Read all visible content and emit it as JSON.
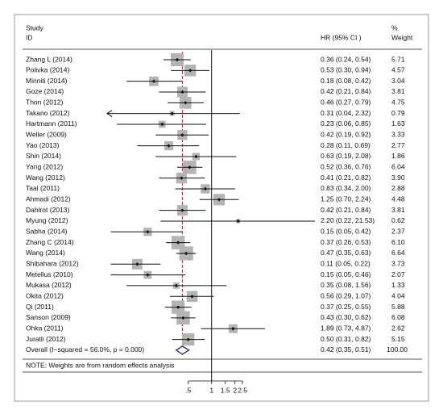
{
  "chart_data": {
    "type": "forest",
    "header": {
      "study": "Study",
      "id": "ID",
      "effect": "HR (95% CI )",
      "pct": "%",
      "weight": "Weight"
    },
    "categories": [
      "Zhang L (2014)",
      "Polivka (2014)",
      "Minniti (2014)",
      "Goze (2014)",
      "Thon (2012)",
      "Takano (2012)",
      "Hartmann  (2011)",
      "Weller (2009)",
      "Yao (2013)",
      "Shin (2014)",
      "Yang (2012)",
      "Wang (2012)",
      "Taal (2011)",
      "Ahmadi (2012)",
      "Dahlrot (2013)",
      "Myung (2012)",
      "Sabha (2014)",
      "Zhang C (2014)",
      "Wang (2014)",
      "Shibahara (2012)",
      "Metellus (2010)",
      "Mukasa (2012)",
      "Okita (2012)",
      "Qi (2011)",
      "Sanson (2009)",
      "Ohka (2011)",
      "Juratli (2012)"
    ],
    "values": [
      0.36,
      0.53,
      0.18,
      0.42,
      0.46,
      0.31,
      0.23,
      0.42,
      0.28,
      0.63,
      0.52,
      0.41,
      0.83,
      1.25,
      0.42,
      2.2,
      0.15,
      0.37,
      0.47,
      0.11,
      0.15,
      0.35,
      0.56,
      0.37,
      0.43,
      1.89,
      0.5
    ],
    "lower": [
      0.24,
      0.3,
      0.08,
      0.21,
      0.27,
      0.04,
      0.06,
      0.19,
      0.11,
      0.19,
      0.36,
      0.21,
      0.34,
      0.7,
      0.21,
      0.22,
      0.05,
      0.26,
      0.35,
      0.05,
      0.05,
      0.08,
      0.29,
      0.25,
      0.3,
      0.73,
      0.31
    ],
    "upper": [
      0.54,
      0.94,
      0.42,
      0.84,
      0.79,
      2.32,
      0.85,
      0.92,
      0.69,
      2.08,
      0.76,
      0.82,
      2.0,
      2.24,
      0.84,
      21.53,
      0.42,
      0.53,
      0.63,
      0.22,
      0.46,
      1.56,
      1.07,
      0.55,
      0.62,
      4.87,
      0.82
    ],
    "value_labels": [
      "0.36 (0.24, 0.54)",
      "0.53 (0.30, 0.94)",
      "0.18 (0.08, 0.42)",
      "0.42 (0.21, 0.84)",
      "0.46 (0.27, 0.79)",
      "0.31 (0.04, 2.32)",
      "0.23 (0.06, 0.85)",
      "0.42 (0.19, 0.92)",
      "0.28 (0.11, 0.69)",
      "0.63 (0.19, 2.08)",
      "0.52 (0.36, 0.76)",
      "0.41 (0.21, 0.82)",
      "0.83 (0.34, 2.00)",
      "1.25 (0.70, 2.24)",
      "0.42 (0.21, 0.84)",
      "2.20 (0.22, 21.53)",
      "0.15 (0.05, 0.42)",
      "0.37 (0.26, 0.53)",
      "0.47 (0.35, 0.63)",
      "0.11 (0.05, 0.22)",
      "0.15 (0.05, 0.46)",
      "0.35 (0.08, 1.56)",
      "0.56 (0.29, 1.07)",
      "0.37 (0.25, 0.55)",
      "0.43 (0.30, 0.62)",
      "1.89 (0.73, 4.87)",
      "0.50 (0.31, 0.82)"
    ],
    "weights": [
      5.71,
      4.57,
      3.04,
      3.81,
      4.75,
      0.79,
      1.63,
      3.33,
      2.77,
      1.86,
      6.04,
      3.9,
      2.88,
      4.48,
      3.81,
      0.62,
      2.37,
      6.1,
      6.64,
      3.73,
      2.07,
      1.33,
      4.04,
      5.88,
      6.08,
      2.62,
      5.15
    ],
    "weight_labels": [
      "5.71",
      "4.57",
      "3.04",
      "3.81",
      "4.75",
      "0.79",
      "1.63",
      "3.33",
      "2.77",
      "1.86",
      "6.04",
      "3.90",
      "2.88",
      "4.48",
      "3.81",
      "0.62",
      "2.37",
      "6.10",
      "6.64",
      "3.73",
      "2.07",
      "1.33",
      "4.04",
      "5.88",
      "6.08",
      "2.62",
      "5.15"
    ],
    "overall": {
      "label": "Overall  (I−squared = 56.0%, p = 0.000)",
      "value": 0.42,
      "lower": 0.35,
      "upper": 0.51,
      "value_label": "0.42 (0.35, 0.51)",
      "weight": 100,
      "weight_label": "100.00"
    },
    "note": "NOTE: Weights are from random effects analysis",
    "xlim": [
      0.045,
      22
    ],
    "xticks": [
      {
        "value": 0.5,
        "label": ".5"
      },
      1,
      1.5,
      2,
      2.5
    ],
    "log_scale": true,
    "box_color": "#b4b4b4",
    "diamond_color": "#1f2a6b",
    "overall_line_color": "#a0303a"
  }
}
